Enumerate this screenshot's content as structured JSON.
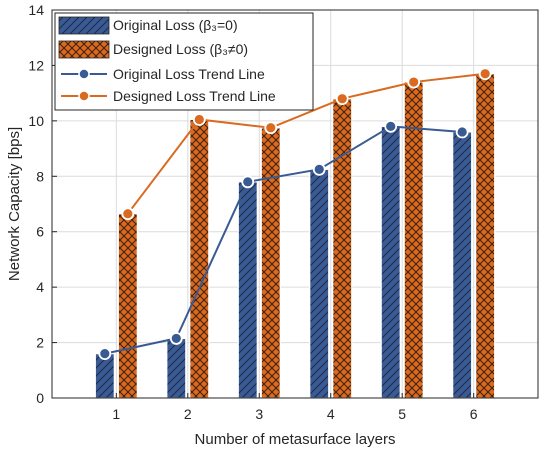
{
  "chart_data": {
    "type": "bar",
    "title": "",
    "xlabel": "Number of metasurface layers",
    "ylabel": "Network Capacity [bps]",
    "categories": [
      "1",
      "2",
      "3",
      "4",
      "5",
      "6"
    ],
    "ylim": [
      0,
      14
    ],
    "yticks": [
      "0",
      "2",
      "4",
      "6",
      "8",
      "10",
      "12",
      "14"
    ],
    "grid": true,
    "legend_position": "top-left",
    "series": [
      {
        "name": "Original Loss (β₃=0)",
        "kind": "bar",
        "color": "#3a5a94",
        "pattern": "diagonal-hatch",
        "values": [
          1.6,
          2.15,
          7.8,
          8.25,
          9.8,
          9.6
        ]
      },
      {
        "name": "Designed Loss (β₃≠0)",
        "kind": "bar",
        "color": "#d96a1f",
        "pattern": "cross-hatch",
        "values": [
          6.65,
          10.05,
          9.75,
          10.8,
          11.4,
          11.7
        ]
      },
      {
        "name": "Original Loss Trend Line",
        "kind": "line",
        "color": "#3a5a94",
        "values": [
          1.6,
          2.15,
          7.8,
          8.25,
          9.8,
          9.6
        ]
      },
      {
        "name": "Designed Loss Trend Line",
        "kind": "line",
        "color": "#d96a1f",
        "values": [
          6.65,
          10.05,
          9.75,
          10.8,
          11.4,
          11.7
        ]
      }
    ]
  }
}
